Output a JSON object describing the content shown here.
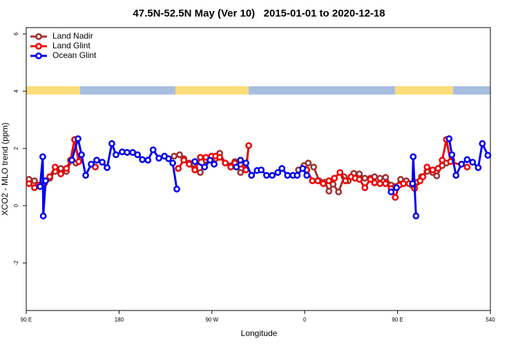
{
  "chart_data": {
    "type": "line",
    "title": "47.5N-52.5N May (Ver 10)   2015-01-01 to 2020-12-18",
    "x_label": "Longitude",
    "y_label": "XCO2 - MLO trend (ppm)",
    "xlim": [
      90,
      540
    ],
    "xticks": [
      {
        "value": 90,
        "label": "90 E"
      },
      180,
      {
        "value": 270,
        "label": "90 W"
      },
      {
        "value": 360,
        "label": "0"
      },
      {
        "value": 450,
        "label": "90 E"
      },
      540
    ],
    "ylim": [
      -3.66,
      6.22
    ],
    "yticks": [
      -2,
      0,
      2,
      4,
      6
    ],
    "legend": "upper left",
    "series": [
      {
        "name": "Land Nadir",
        "color": "#a03030",
        "x": [
          92.7,
          98,
          103.4,
          112.8,
          118,
          123.5,
          128.9,
          134.2,
          138.2,
          142.3,
          null,
          233.4,
          238.7,
          242.8,
          248,
          253.5,
          258.8,
          264.2,
          269.6,
          273.6,
          277.6,
          283,
          288.3,
          292.3,
          297.7,
          303,
          null,
          354,
          359.3,
          363.4,
          368.7,
          374,
          379.4,
          383.5,
          387.5,
          392.8,
          398.2,
          402.2,
          407.6,
          413,
          418.3,
          423.7,
          427.7,
          433,
          438.4,
          443.8,
          447.8,
          453,
          458.5,
          463.9,
          469.2,
          473.2,
          478.6,
          484,
          488,
          493.3,
          497.4,
          502.7
        ],
        "values": [
          0.92,
          0.87,
          0.72,
          0.96,
          1.2,
          1.3,
          1.2,
          1.59,
          1.49,
          1.59,
          null,
          1.73,
          1.78,
          1.64,
          1.49,
          1.3,
          1.16,
          1.59,
          1.69,
          1.64,
          1.83,
          1.49,
          1.4,
          1.54,
          1.16,
          1.3,
          null,
          1.25,
          1.4,
          1.49,
          1.35,
          0.87,
          0.82,
          0.51,
          0.75,
          0.48,
          1.01,
          0.87,
          1.13,
          1.11,
          0.96,
          0.96,
          1.01,
          0.96,
          0.99,
          0.72,
          0.67,
          0.92,
          0.87,
          0.72,
          0.82,
          1.01,
          1.2,
          1.16,
          1.04,
          1.4,
          1.49,
          1.59
        ]
      },
      {
        "name": "Land Glint",
        "color": "#ee0000",
        "x": [
          92.7,
          98,
          102,
          107.5,
          112.8,
          118,
          123.5,
          128.9,
          132.9,
          136.9,
          140.9,
          null,
          157,
          null,
          237.4,
          242.8,
          248,
          253.5,
          258.8,
          264.2,
          269.6,
          273.6,
          277.6,
          283,
          288.3,
          292.3,
          297.7,
          303,
          305.7,
          null,
          362,
          367.4,
          372.7,
          378,
          383.5,
          388.8,
          394.2,
          399.5,
          404.9,
          408.9,
          413,
          418.3,
          423.7,
          427.7,
          433,
          438.4,
          443.8,
          447.8,
          451.8,
          455.8,
          461.2,
          466.5,
          471.9,
          474.6,
          478.6,
          484,
          489.3,
          493.3,
          497.4,
          501.4,
          517.5
        ],
        "values": [
          0.77,
          0.63,
          0.72,
          0.77,
          1.01,
          1.35,
          1.11,
          1.3,
          1.59,
          2.31,
          1.54,
          null,
          1.35,
          null,
          1.3,
          1.59,
          1.45,
          1.25,
          1.69,
          1.69,
          1.73,
          1.73,
          1.69,
          1.49,
          1.35,
          1.49,
          1.45,
          1.25,
          2.1,
          null,
          1.25,
          0.87,
          0.87,
          0.77,
          0.87,
          0.96,
          1.16,
          0.87,
          1.01,
          0.96,
          0.92,
          0.63,
          0.92,
          0.8,
          0.77,
          0.77,
          0.6,
          0.29,
          0.72,
          0.77,
          0.77,
          0.6,
          0.87,
          1.01,
          1.35,
          1.25,
          1.3,
          1.59,
          2.31,
          1.54,
          1.35
        ]
      },
      {
        "name": "Ocean Glint",
        "color": "#0000ee",
        "x": [
          103.4,
          106,
          106.5,
          108.8,
          null,
          134.2,
          140.2,
          143.6,
          147.6,
          153,
          158.3,
          163.7,
          168.4,
          173,
          177,
          183,
          187.8,
          193.2,
          197.9,
          202.6,
          208,
          213,
          218.6,
          224,
          228,
          232,
          236,
          null,
          253.5,
          262.9,
          268.2,
          272.2,
          null,
          293.7,
          297.7,
          303,
          308.4,
          313.8,
          317.8,
          323,
          328.5,
          333.9,
          337.9,
          343.3,
          348.6,
          352.7,
          358,
          362,
          null,
          443.8,
          449,
          null,
          464.5,
          465.2,
          467.9,
          null,
          500,
          502.7,
          506.7,
          512,
          517.5,
          522.8,
          528.2,
          532.2,
          537.6
        ],
        "values": [
          0.67,
          1.71,
          -0.36,
          0.87,
          null,
          1.59,
          2.34,
          1.78,
          1.06,
          1.45,
          1.59,
          1.52,
          1.33,
          2.17,
          1.78,
          1.88,
          1.86,
          1.86,
          1.78,
          1.61,
          1.59,
          1.95,
          1.66,
          1.73,
          1.64,
          1.49,
          0.58,
          null,
          1.54,
          1.35,
          1.59,
          1.45,
          null,
          1.35,
          1.59,
          1.49,
          1.06,
          1.23,
          1.25,
          1.06,
          1.06,
          1.16,
          1.3,
          1.06,
          1.06,
          1.06,
          1.3,
          1.06,
          null,
          0.48,
          0.63,
          null,
          0.77,
          1.71,
          -0.36,
          null,
          2.34,
          1.78,
          1.06,
          1.45,
          1.61,
          1.52,
          1.33,
          2.17,
          1.76
        ]
      }
    ]
  }
}
